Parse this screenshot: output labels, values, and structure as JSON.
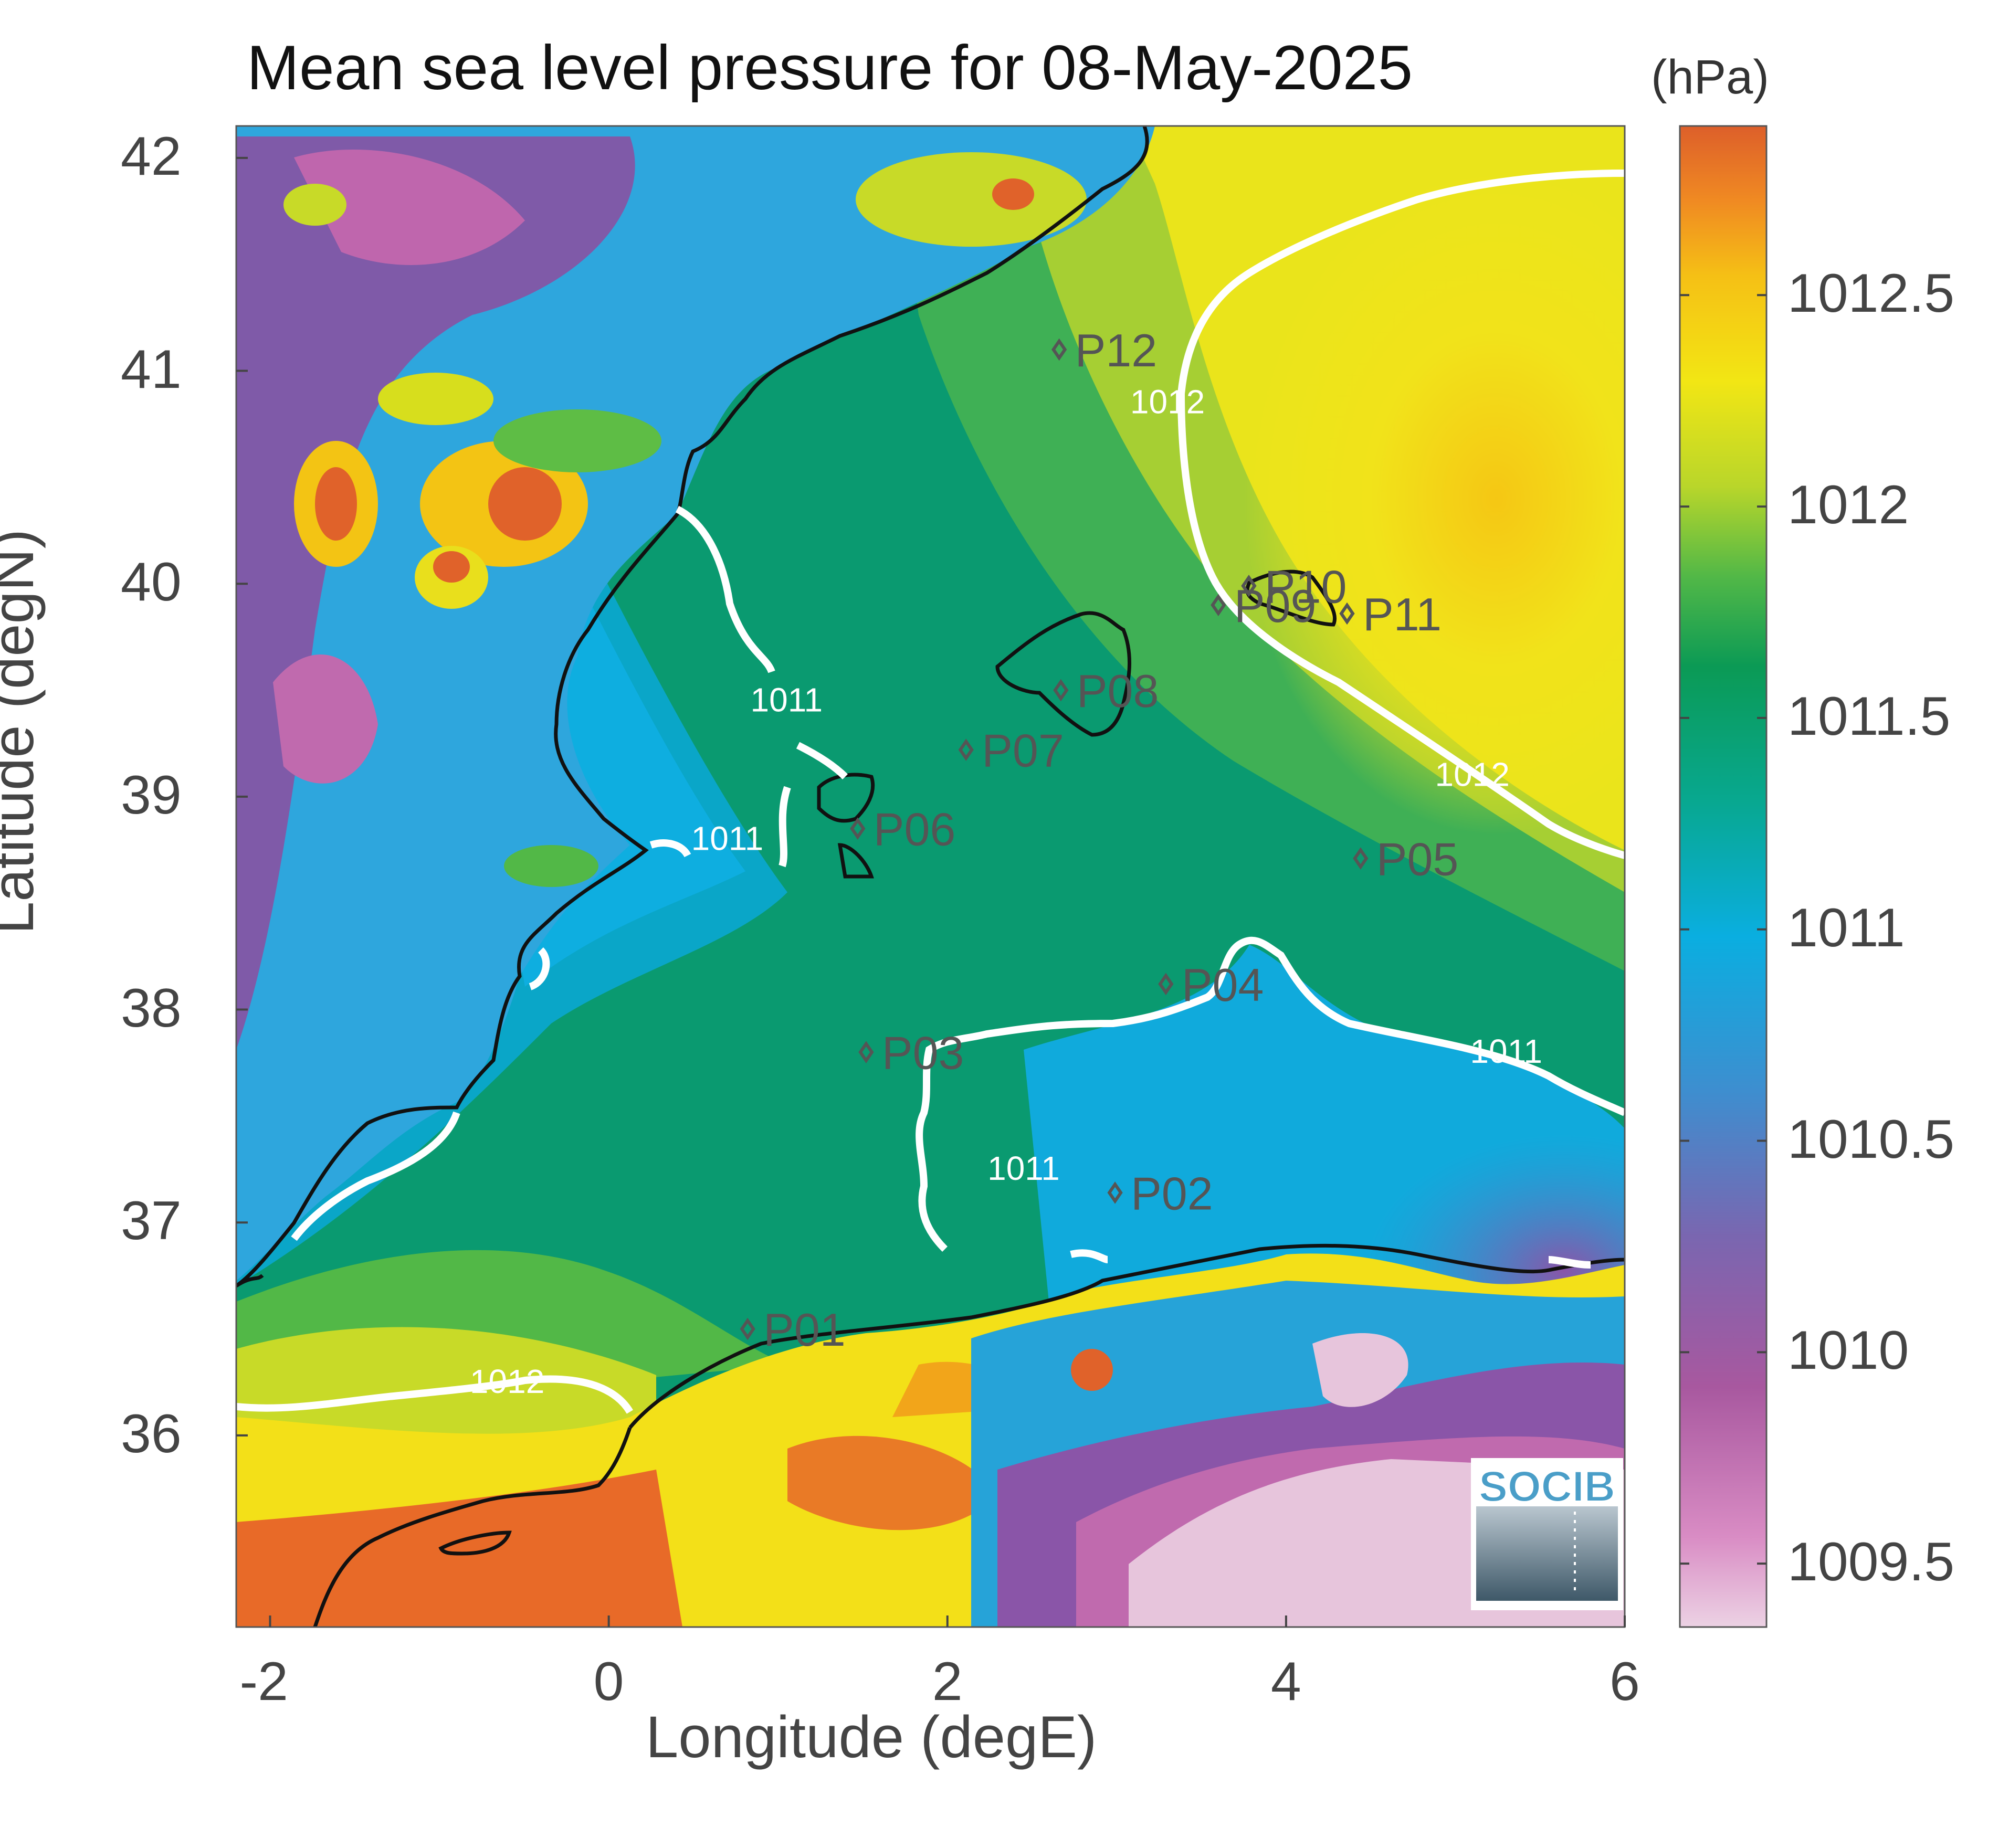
{
  "title": "Mean sea level pressure for 08-May-2025",
  "colorbar": {
    "units": "(hPa)",
    "ticks": [
      "1012.5",
      "1012",
      "1011.5",
      "1011",
      "1010.5",
      "1010",
      "1009.5"
    ],
    "tick_values": [
      1012.5,
      1012.0,
      1011.5,
      1011.0,
      1010.5,
      1010.0,
      1009.5
    ],
    "range": [
      1009.35,
      1012.9
    ],
    "colors": [
      "#e8c6de",
      "#c05ca6",
      "#7f5aa8",
      "#3a8fd0",
      "#11a8e0",
      "#08a58a",
      "#0c9a52",
      "#6fbe42",
      "#d7de1d",
      "#f4d00c",
      "#f2a51a",
      "#e0622a"
    ]
  },
  "axes": {
    "xlabel": "Longitude (degE)",
    "ylabel": "Latitude (degN)",
    "xticks": [
      "-2",
      "0",
      "2",
      "4",
      "6"
    ],
    "xtick_values": [
      -2,
      0,
      2,
      4,
      6
    ],
    "yticks": [
      "42",
      "41",
      "40",
      "39",
      "38",
      "37",
      "36"
    ],
    "ytick_values": [
      42,
      41,
      40,
      39,
      38,
      37,
      36
    ],
    "xlim": [
      -2.2,
      6.0
    ],
    "ylim": [
      35.1,
      42.15
    ]
  },
  "contour_labels": [
    {
      "text": "1012",
      "lon": 3.3,
      "lat": 40.8
    },
    {
      "text": "1012",
      "lon": 5.1,
      "lat": 39.05
    },
    {
      "text": "1011",
      "lon": 1.05,
      "lat": 39.4
    },
    {
      "text": "1011",
      "lon": 0.7,
      "lat": 38.75
    },
    {
      "text": "1011",
      "lon": 5.3,
      "lat": 37.75
    },
    {
      "text": "1011",
      "lon": 2.45,
      "lat": 37.2
    },
    {
      "text": "1012",
      "lon": -0.6,
      "lat": 36.2
    }
  ],
  "points": [
    {
      "label": "P01",
      "lon": 0.82,
      "lat": 36.5
    },
    {
      "label": "P02",
      "lon": 2.99,
      "lat": 37.14
    },
    {
      "label": "P03",
      "lon": 1.52,
      "lat": 37.8
    },
    {
      "label": "P04",
      "lon": 3.29,
      "lat": 38.12
    },
    {
      "label": "P05",
      "lon": 4.44,
      "lat": 38.71
    },
    {
      "label": "P06",
      "lon": 1.47,
      "lat": 38.85
    },
    {
      "label": "P07",
      "lon": 2.11,
      "lat": 39.22
    },
    {
      "label": "P08",
      "lon": 2.67,
      "lat": 39.5
    },
    {
      "label": "P09",
      "lon": 3.6,
      "lat": 39.9
    },
    {
      "label": "P10",
      "lon": 3.78,
      "lat": 39.99
    },
    {
      "label": "P11",
      "lon": 4.36,
      "lat": 39.86
    },
    {
      "label": "P12",
      "lon": 2.66,
      "lat": 41.1
    }
  ],
  "logo": {
    "text": "SOCIB"
  }
}
